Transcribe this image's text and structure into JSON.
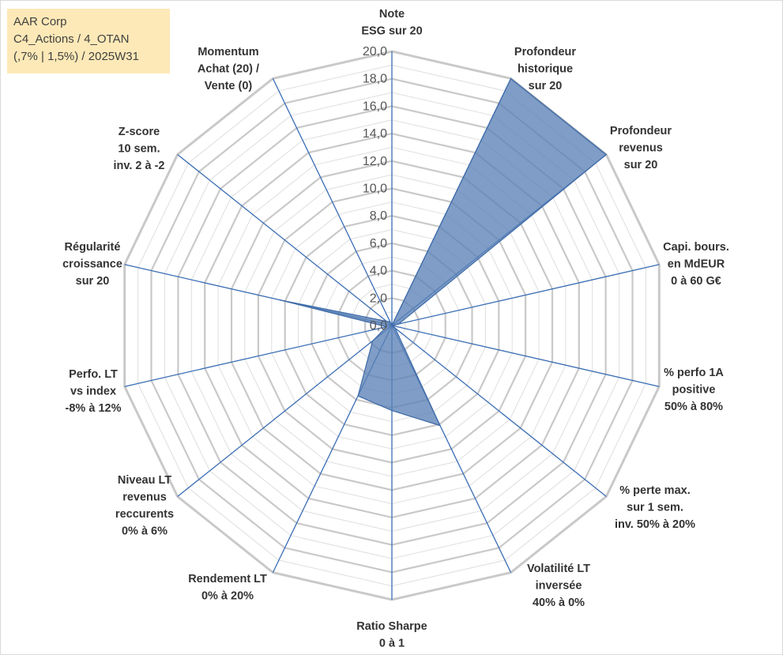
{
  "chart_data": {
    "type": "radar",
    "title_lines": [
      "AAR Corp",
      "C4_Actions / 4_OTAN",
      "(,7% | 1,5%) / 2025W31"
    ],
    "r_range": [
      0,
      20
    ],
    "tick_labels": [
      "0,0",
      "2,0",
      "4,0",
      "6,0",
      "8,0",
      "10,0",
      "12,0",
      "14,0",
      "16,0",
      "18,0",
      "20,0"
    ],
    "grid": true,
    "axes": [
      {
        "lines": [
          "Note",
          "ESG sur 20"
        ],
        "value": 0
      },
      {
        "lines": [
          "Profondeur",
          "historique",
          "sur 20"
        ],
        "value": 20
      },
      {
        "lines": [
          "Profondeur",
          "revenus",
          "sur 20"
        ],
        "value": 20
      },
      {
        "lines": [
          "Capi. bours.",
          "en MdEUR",
          "0 à 60 G€"
        ],
        "value": 0.5
      },
      {
        "lines": [
          "% perfo 1A",
          "positive",
          "50% à 80%"
        ],
        "value": 0
      },
      {
        "lines": [
          "% perte max.",
          "sur 1 sem.",
          "inv. 50% à 20%"
        ],
        "value": 0.3
      },
      {
        "lines": [
          "Volatilité LT",
          "inversée",
          "40% à 0%"
        ],
        "value": 8.1
      },
      {
        "lines": [
          "Ratio Sharpe",
          "0 à 1"
        ],
        "value": 6.2
      },
      {
        "lines": [
          "Rendement LT",
          "0% à 20%"
        ],
        "value": 5.7
      },
      {
        "lines": [
          "Niveau LT",
          "revenus",
          "reccurents",
          "0% à 6%"
        ],
        "value": 1.8
      },
      {
        "lines": [
          "Perfo. LT",
          "vs index",
          "-8% à 12%"
        ],
        "value": 0.4
      },
      {
        "lines": [
          "Régularité",
          "croissance",
          "sur 20"
        ],
        "value": 8.4
      },
      {
        "lines": [
          "Z-score",
          "10 sem.",
          "inv. 2 à -2"
        ],
        "value": 0.5
      },
      {
        "lines": [
          "Momentum",
          "Achat (20) /",
          "Vente (0)"
        ],
        "value": 0.3
      }
    ],
    "colors": {
      "fill": "#5b82b6",
      "stroke": "#3e6aa8",
      "spoke": "#3a6db4",
      "grid_major": "#c9c9c9",
      "grid_minor": "#dedede",
      "title_box": "#fde9b7"
    }
  }
}
